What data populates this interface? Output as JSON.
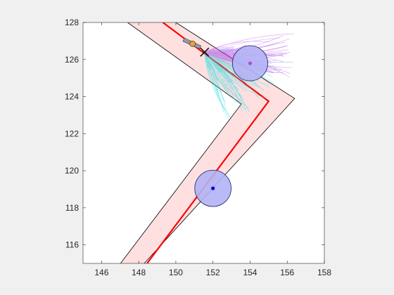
{
  "chart_data": {
    "type": "scatter",
    "title": "",
    "xlabel": "",
    "ylabel": "",
    "xlim": [
      145,
      158
    ],
    "ylim": [
      115,
      128
    ],
    "xticks": [
      146,
      148,
      150,
      152,
      154,
      156,
      158
    ],
    "yticks": [
      116,
      118,
      120,
      122,
      124,
      126,
      128
    ],
    "grid": false,
    "legend": "none",
    "corridor": {
      "outer_boundary": [
        [
          147.02,
          115
        ],
        [
          153.53,
          123.6
        ],
        [
          147.4,
          128
        ]
      ],
      "inner_boundary": [
        [
          148.3,
          115
        ],
        [
          156.4,
          123.9
        ],
        [
          150.0,
          128.0
        ]
      ],
      "fill": "#ffe0e0",
      "edge": "#000000"
    },
    "reference_path": {
      "x": [
        148.45,
        155.0,
        149.3
      ],
      "y": [
        115.0,
        123.75,
        128.0
      ],
      "color": "#ff0000"
    },
    "obstacles": [
      {
        "center": [
          154.0,
          125.8
        ],
        "radius": 0.95,
        "fill": "#b3b3f5",
        "edge": "#1a1a66",
        "marker_color": "#b04ad8"
      },
      {
        "center": [
          152.0,
          119.05
        ],
        "radius": 0.98,
        "fill": "#b3b3f5",
        "edge": "#1a1a66",
        "marker_color": "#0000cc"
      }
    ],
    "vehicle": {
      "position": [
        150.9,
        126.85
      ],
      "heading_deg": -25,
      "marker_color": "#f0a030",
      "target": [
        151.55,
        126.4
      ]
    },
    "sampled_trajectories": {
      "origin": [
        151.55,
        126.4
      ],
      "count": 160,
      "colors": [
        "#00e8d8",
        "#30d0e8",
        "#a040e0",
        "#d040f0",
        "#9070f0"
      ]
    }
  }
}
